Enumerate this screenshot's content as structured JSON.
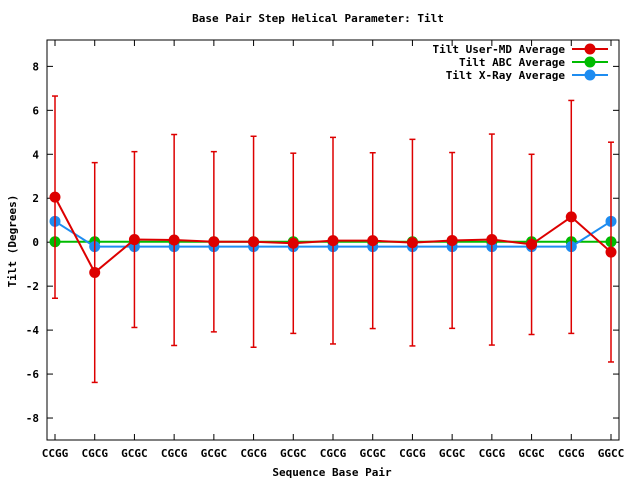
{
  "chart_data": {
    "type": "line",
    "title": "Base Pair Step Helical Parameter: Tilt",
    "xlabel": "Sequence Base Pair",
    "ylabel": "Tilt (Degrees)",
    "ylim": [
      -9,
      9.2
    ],
    "yticks": [
      -8,
      -6,
      -4,
      -2,
      0,
      2,
      4,
      6,
      8
    ],
    "grid": false,
    "legend_position": "top-right",
    "categories": [
      "CCGG",
      "CGCG",
      "GCGC",
      "CGCG",
      "GCGC",
      "CGCG",
      "GCGC",
      "CGCG",
      "GCGC",
      "CGCG",
      "GCGC",
      "CGCG",
      "GCGC",
      "CGCG",
      "GGCC"
    ],
    "series": [
      {
        "name": "Tilt User-MD Average",
        "color": "#dd0000",
        "values": [
          2.05,
          -1.38,
          0.12,
          0.1,
          0.02,
          0.02,
          -0.05,
          0.07,
          0.07,
          -0.02,
          0.08,
          0.12,
          -0.1,
          1.15,
          -0.45
        ],
        "error": [
          4.6,
          5.0,
          4.0,
          4.8,
          4.1,
          4.8,
          4.1,
          4.7,
          4.0,
          4.7,
          4.0,
          4.8,
          4.1,
          5.3,
          5.0
        ]
      },
      {
        "name": "Tilt ABC Average",
        "color": "#00bb00",
        "values": [
          0.02,
          0.02,
          0.02,
          0.02,
          0.02,
          0.02,
          0.02,
          0.02,
          0.02,
          0.02,
          0.02,
          0.02,
          0.02,
          0.02,
          0.02
        ]
      },
      {
        "name": "Tilt X-Ray Average",
        "color": "#1e8cf0",
        "values": [
          0.95,
          -0.2,
          -0.2,
          -0.2,
          -0.2,
          -0.2,
          -0.2,
          -0.2,
          -0.2,
          -0.2,
          -0.2,
          -0.2,
          -0.2,
          -0.2,
          0.95
        ]
      }
    ]
  }
}
